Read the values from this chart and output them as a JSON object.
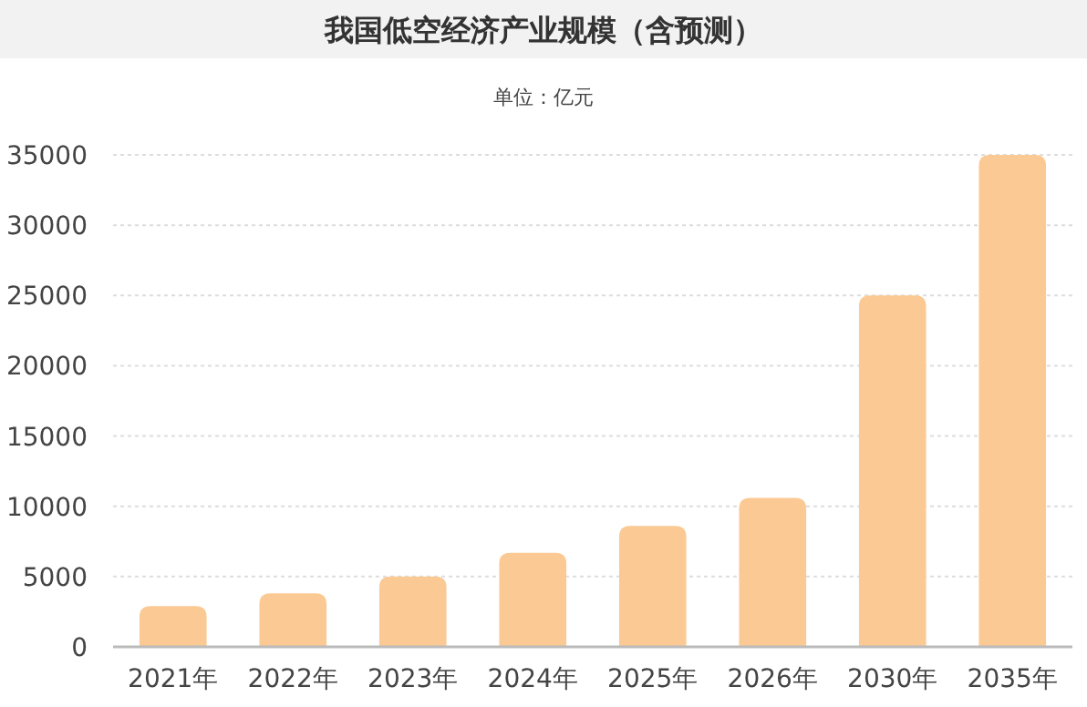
{
  "chart_data": {
    "type": "bar",
    "title": "我国低空经济产业规模（含预测）",
    "subtitle": "单位：亿元",
    "categories": [
      "2021年",
      "2022年",
      "2023年",
      "2024年",
      "2025年",
      "2026年",
      "2030年",
      "2035年"
    ],
    "values": [
      2900,
      3800,
      5000,
      6700,
      8600,
      10600,
      25000,
      35000
    ],
    "color": "#fbc993",
    "ylim": [
      0,
      35000
    ],
    "yticks": [
      0,
      5000,
      10000,
      15000,
      20000,
      25000,
      30000,
      35000
    ],
    "grid": "y"
  }
}
